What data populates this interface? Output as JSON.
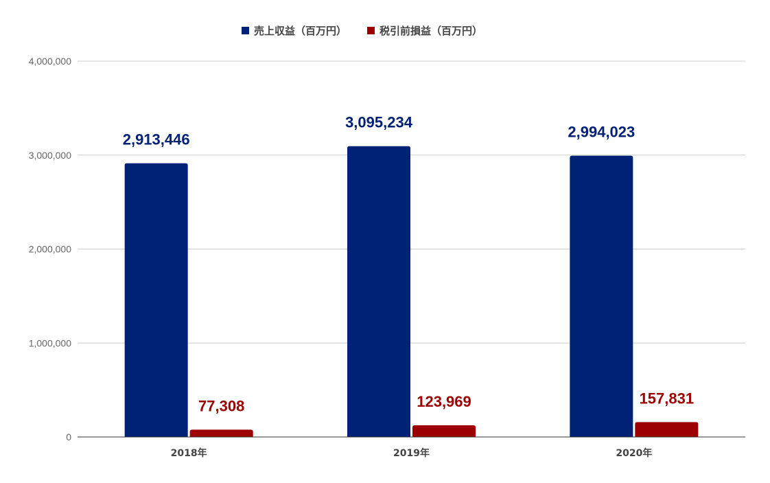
{
  "chart_data": {
    "type": "bar",
    "categories": [
      "2018年",
      "2019年",
      "2020年"
    ],
    "series": [
      {
        "name": "売上収益（百万円）",
        "color": "#002276",
        "values": [
          2913446,
          3095234,
          2994023
        ],
        "labels": [
          "2,913,446",
          "3,095,234",
          "2,994,023"
        ]
      },
      {
        "name": "税引前損益（百万円）",
        "color": "#9c0000",
        "values": [
          77308,
          123969,
          157831
        ],
        "labels": [
          "77,308",
          "123,969",
          "157,831"
        ]
      }
    ],
    "y_ticks": [
      "0",
      "1,000,000",
      "2,000,000",
      "3,000,000",
      "4,000,000"
    ],
    "y_tick_values": [
      0,
      1000000,
      2000000,
      3000000,
      4000000
    ],
    "ylim": [
      0,
      4000000
    ],
    "grid": true,
    "legend_position": "top-center"
  }
}
